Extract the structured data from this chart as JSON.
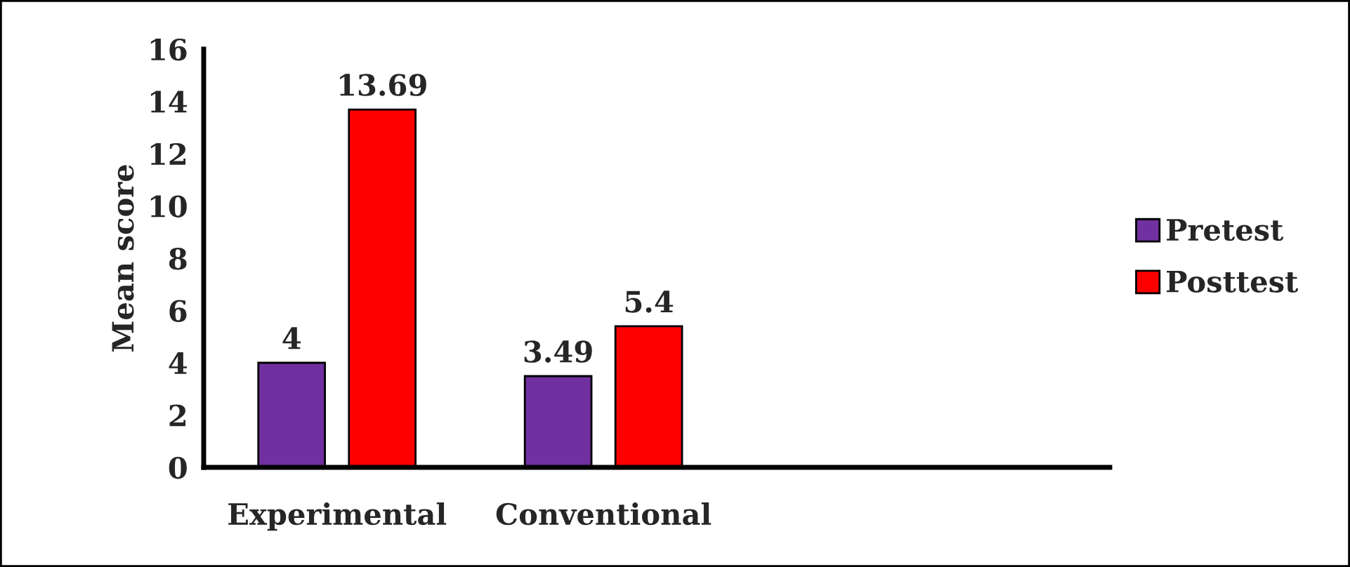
{
  "chart_data": {
    "type": "bar",
    "ylabel": "Mean score",
    "categories": [
      "Experimental",
      "Conventional"
    ],
    "series": [
      {
        "name": "Pretest",
        "color": "#7030a0",
        "values": [
          4,
          3.49
        ]
      },
      {
        "name": "Posttest",
        "color": "#ff0000",
        "values": [
          13.69,
          5.4
        ]
      }
    ],
    "ylim": [
      0,
      16
    ],
    "yticks": [
      0,
      2,
      4,
      6,
      8,
      10,
      12,
      14,
      16
    ],
    "grid": false,
    "legend": "right",
    "data_labels": true
  }
}
